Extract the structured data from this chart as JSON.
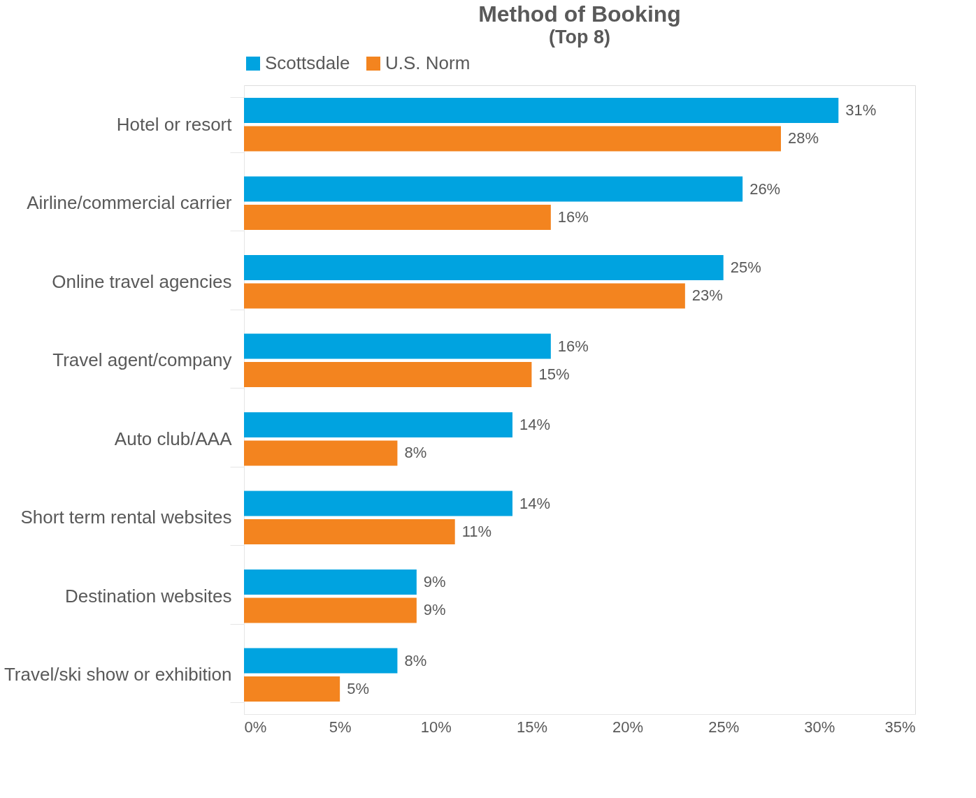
{
  "chart_data": {
    "type": "bar",
    "orientation": "horizontal",
    "title": "Method of Booking",
    "subtitle": "(Top 8)",
    "categories": [
      "Hotel or resort",
      "Airline/commercial carrier",
      "Online travel agencies",
      "Travel agent/company",
      "Auto club/AAA",
      "Short term rental websites",
      "Destination websites",
      "Travel/ski show or exhibition"
    ],
    "series": [
      {
        "name": "Scottsdale",
        "color": "#00a3e0",
        "values": [
          31,
          26,
          25,
          16,
          14,
          14,
          9,
          8
        ],
        "value_labels": [
          "31%",
          "26%",
          "25%",
          "16%",
          "14%",
          "14%",
          "9%",
          "8%"
        ]
      },
      {
        "name": "U.S. Norm",
        "color": "#f3841f",
        "values": [
          28,
          16,
          23,
          15,
          8,
          11,
          9,
          5
        ],
        "value_labels": [
          "28%",
          "16%",
          "23%",
          "15%",
          "8%",
          "11%",
          "9%",
          "5%"
        ]
      }
    ],
    "xlim": [
      0,
      35
    ],
    "xticks": [
      {
        "value": 0,
        "label": "0%"
      },
      {
        "value": 5,
        "label": "5%"
      },
      {
        "value": 10,
        "label": "10%"
      },
      {
        "value": 15,
        "label": "15%"
      },
      {
        "value": 20,
        "label": "20%"
      },
      {
        "value": 25,
        "label": "25%"
      },
      {
        "value": 30,
        "label": "30%"
      },
      {
        "value": 35,
        "label": "35%"
      }
    ],
    "grid": false,
    "legend": "top"
  }
}
